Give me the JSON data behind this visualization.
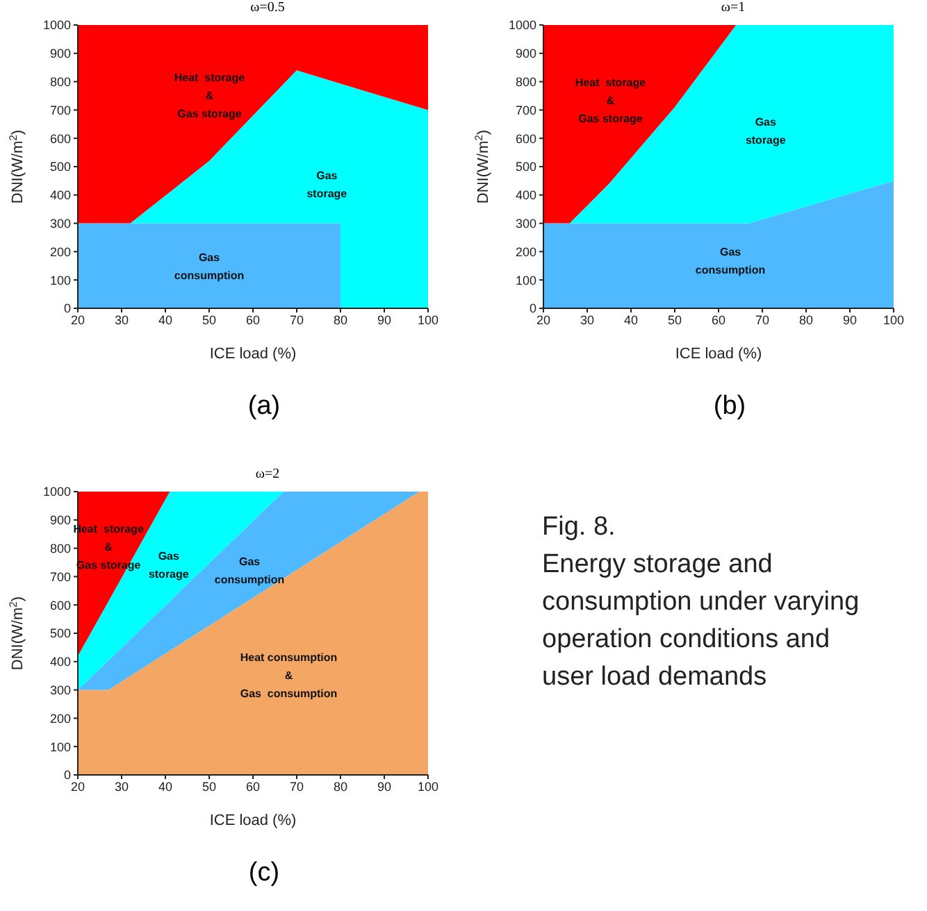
{
  "chart_data": [
    {
      "type": "area",
      "stacked": true,
      "title": "ω=0.5",
      "xlabel": "ICE load (%)",
      "ylabel": "DNI(W/m$^{2}$)",
      "x": [
        20,
        32,
        50,
        70,
        80,
        80,
        100
      ],
      "xlim": [
        20,
        100
      ],
      "ylim": [
        0,
        1000
      ],
      "xticks": [
        20,
        30,
        40,
        50,
        60,
        70,
        80,
        90,
        100
      ],
      "yticks": [
        0,
        100,
        200,
        300,
        400,
        500,
        600,
        700,
        800,
        900,
        1000
      ],
      "series": [
        {
          "name": "Gas consumption",
          "color": "#4fb9ff",
          "values": [
            300,
            300,
            300,
            300,
            300,
            0,
            0
          ]
        },
        {
          "name": "Gas storage",
          "color": "#00ffff",
          "values": [
            0,
            0,
            220,
            540,
            493,
            793,
            700
          ]
        },
        {
          "name": "Heat  storage & Gas storage",
          "color": "#ff0000",
          "values": [
            700,
            700,
            480,
            160,
            207,
            207,
            300
          ]
        }
      ],
      "annotations": [
        "(a)"
      ]
    },
    {
      "type": "area",
      "stacked": true,
      "title": "ω=1",
      "xlabel": "ICE load (%)",
      "ylabel": "DNI(W/m$^{2}$)",
      "x": [
        20,
        26,
        35,
        50,
        64,
        67,
        100
      ],
      "xlim": [
        20,
        100
      ],
      "ylim": [
        0,
        1000
      ],
      "xticks": [
        20,
        30,
        40,
        50,
        60,
        70,
        80,
        90,
        100
      ],
      "yticks": [
        0,
        100,
        200,
        300,
        400,
        500,
        600,
        700,
        800,
        900,
        1000
      ],
      "series": [
        {
          "name": "Gas consumption",
          "color": "#4fb9ff",
          "values": [
            300,
            300,
            300,
            300,
            300,
            300,
            450
          ]
        },
        {
          "name": "Gas storage",
          "color": "#00ffff",
          "values": [
            0,
            0,
            140,
            410,
            700,
            700,
            550
          ]
        },
        {
          "name": "Heat  storage & Gas storage",
          "color": "#ff0000",
          "x": [
            20,
            26,
            35,
            50,
            64
          ],
          "values": [
            700,
            700,
            560,
            290,
            0
          ]
        }
      ],
      "annotations": [
        "(b)"
      ]
    },
    {
      "type": "area",
      "stacked": true,
      "title": "ω=2",
      "xlabel": "ICE load (%)",
      "ylabel": "DNI(W/m$^{2}$)",
      "x": [
        20,
        27,
        41,
        67,
        98,
        100
      ],
      "xlim": [
        20,
        100
      ],
      "ylim": [
        0,
        1000
      ],
      "xticks": [
        20,
        30,
        40,
        50,
        60,
        70,
        80,
        90,
        100
      ],
      "yticks": [
        0,
        100,
        200,
        300,
        400,
        500,
        600,
        700,
        800,
        900,
        1000
      ],
      "series": [
        {
          "name": "Heat consumption & Gas  consumption",
          "color": "#f4a764",
          "values": [
            300,
            300,
            438,
            694,
            1000,
            1000
          ]
        },
        {
          "name": "Gas consumption",
          "color": "#4fb9ff",
          "x": [
            20,
            27,
            41,
            67,
            98
          ],
          "values": [
            0,
            104,
            175,
            306,
            0
          ]
        },
        {
          "name": "Gas storage",
          "color": "#00ffff",
          "x": [
            20,
            27,
            41,
            67
          ],
          "values": [
            120,
            209,
            387,
            0
          ]
        },
        {
          "name": "Heat  storage & Gas storage",
          "color": "#ff0000",
          "x": [
            20,
            27,
            41
          ],
          "values": [
            580,
            387,
            0
          ]
        }
      ],
      "annotations": [
        "(c)",
        "Fig. 8.\nEnergy storage and consumption under varying operation conditions and user load demands"
      ]
    }
  ]
}
